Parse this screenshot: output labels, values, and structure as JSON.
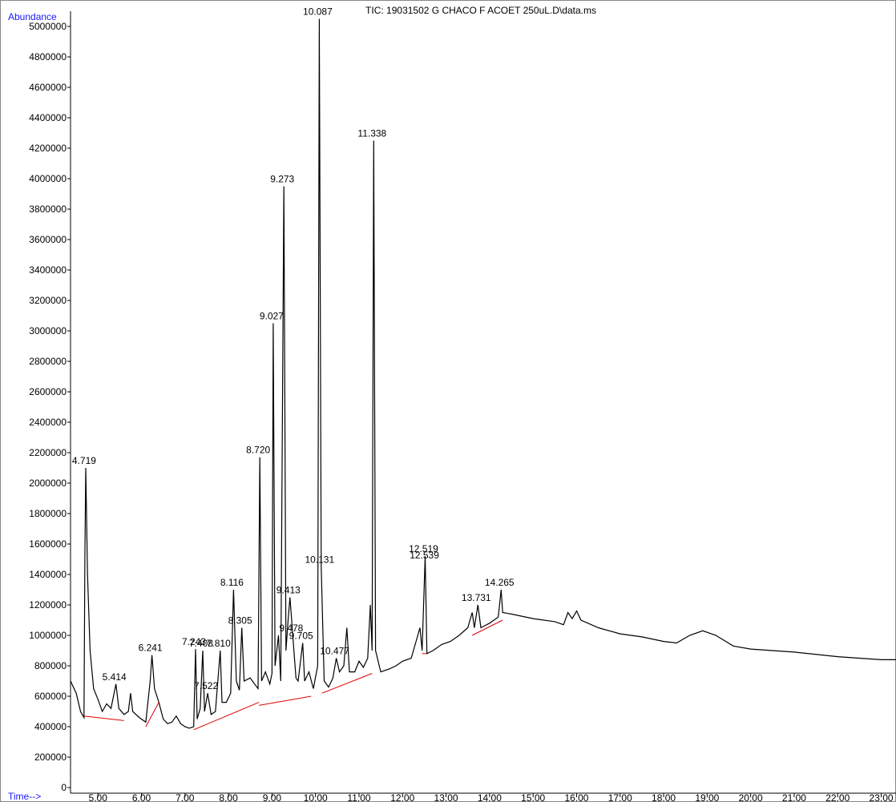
{
  "chart_data": {
    "type": "line",
    "title": "TIC: 19031502 G CHACO F ACOET 250uL.D\\data.ms",
    "y_label": "Abundance",
    "x_label": "Time-->",
    "xlim": [
      4.37,
      23.34
    ],
    "ylim": [
      0,
      5100000
    ],
    "xticks": [
      {
        "value": 5,
        "label": "5.00"
      },
      {
        "value": 6,
        "label": "6.00"
      },
      {
        "value": 7,
        "label": "7.00"
      },
      {
        "value": 8,
        "label": "8.00"
      },
      {
        "value": 9,
        "label": "9.00"
      },
      {
        "value": 10,
        "label": "10.00"
      },
      {
        "value": 11,
        "label": "11.00"
      },
      {
        "value": 12,
        "label": "12.00"
      },
      {
        "value": 13,
        "label": "13.00"
      },
      {
        "value": 14,
        "label": "14.00"
      },
      {
        "value": 15,
        "label": "15.00"
      },
      {
        "value": 16,
        "label": "16.00"
      },
      {
        "value": 17,
        "label": "17.00"
      },
      {
        "value": 18,
        "label": "18.00"
      },
      {
        "value": 19,
        "label": "19.00"
      },
      {
        "value": 20,
        "label": "20.00"
      },
      {
        "value": 21,
        "label": "21.00"
      },
      {
        "value": 22,
        "label": "22.00"
      },
      {
        "value": 23,
        "label": "23.00"
      }
    ],
    "yticks": [
      0,
      200000,
      400000,
      600000,
      800000,
      1000000,
      1200000,
      1400000,
      1600000,
      1800000,
      2000000,
      2200000,
      2400000,
      2600000,
      2800000,
      3000000,
      3200000,
      3400000,
      3600000,
      3800000,
      4000000,
      4200000,
      4400000,
      4600000,
      4800000,
      5000000
    ],
    "series": [
      {
        "color": "#000000",
        "x": [
          4.37,
          4.5,
          4.6,
          4.68,
          4.7,
          4.72,
          4.76,
          4.82,
          4.9,
          5.0,
          5.1,
          5.2,
          5.3,
          5.414,
          5.48,
          5.6,
          5.7,
          5.75,
          5.8,
          5.95,
          6.1,
          6.2,
          6.241,
          6.3,
          6.4,
          6.5,
          6.6,
          6.7,
          6.8,
          6.9,
          7.0,
          7.1,
          7.2,
          7.243,
          7.28,
          7.35,
          7.408,
          7.45,
          7.522,
          7.6,
          7.7,
          7.81,
          7.85,
          7.95,
          8.05,
          8.116,
          8.18,
          8.25,
          8.305,
          8.36,
          8.5,
          8.6,
          8.68,
          8.72,
          8.76,
          8.85,
          8.95,
          9.0,
          9.027,
          9.07,
          9.15,
          9.2,
          9.273,
          9.32,
          9.37,
          9.413,
          9.478,
          9.55,
          9.6,
          9.705,
          9.75,
          9.85,
          9.95,
          10.05,
          10.087,
          10.131,
          10.2,
          10.3,
          10.4,
          10.477,
          10.55,
          10.65,
          10.72,
          10.78,
          10.9,
          11.0,
          11.1,
          11.2,
          11.26,
          11.3,
          11.338,
          11.38,
          11.5,
          11.7,
          11.85,
          12.0,
          12.2,
          12.3,
          12.4,
          12.45,
          12.519,
          12.56,
          12.7,
          12.9,
          13.1,
          13.3,
          13.5,
          13.6,
          13.65,
          13.731,
          13.8,
          14.0,
          14.2,
          14.265,
          14.3,
          14.5,
          15.0,
          15.5,
          15.7,
          15.8,
          15.9,
          16.0,
          16.1,
          16.5,
          17.0,
          17.5,
          18.0,
          18.3,
          18.6,
          18.9,
          19.2,
          19.6,
          20.0,
          21.0,
          22.0,
          23.0,
          23.34
        ],
        "values": [
          700000,
          620000,
          500000,
          460000,
          1500000,
          2100000,
          1400000,
          900000,
          650000,
          580000,
          500000,
          550000,
          520000,
          680000,
          520000,
          480000,
          500000,
          620000,
          500000,
          460000,
          430000,
          700000,
          870000,
          650000,
          560000,
          450000,
          420000,
          430000,
          470000,
          420000,
          400000,
          390000,
          400000,
          910000,
          450000,
          520000,
          900000,
          500000,
          620000,
          480000,
          500000,
          900000,
          560000,
          560000,
          620000,
          1300000,
          700000,
          640000,
          1050000,
          700000,
          720000,
          680000,
          650000,
          2170000,
          700000,
          760000,
          680000,
          750000,
          3050000,
          800000,
          1000000,
          700000,
          3950000,
          900000,
          1100000,
          1250000,
          1000000,
          720000,
          700000,
          950000,
          700000,
          760000,
          650000,
          800000,
          5050000,
          1450000,
          700000,
          660000,
          720000,
          850000,
          760000,
          800000,
          1050000,
          760000,
          760000,
          830000,
          790000,
          850000,
          1200000,
          900000,
          4250000,
          900000,
          760000,
          780000,
          800000,
          830000,
          850000,
          950000,
          1050000,
          900000,
          1520000,
          880000,
          900000,
          940000,
          960000,
          1000000,
          1050000,
          1150000,
          1050000,
          1200000,
          1050000,
          1080000,
          1120000,
          1300000,
          1150000,
          1140000,
          1110000,
          1090000,
          1070000,
          1150000,
          1110000,
          1160000,
          1100000,
          1050000,
          1010000,
          990000,
          960000,
          950000,
          1000000,
          1030000,
          1000000,
          930000,
          910000,
          890000,
          860000,
          840000,
          840000
        ]
      }
    ],
    "baseline_color": "#e00000",
    "baselines": [
      {
        "x": [
          4.68,
          5.6
        ],
        "y": [
          470000,
          440000
        ]
      },
      {
        "x": [
          6.1,
          6.4
        ],
        "y": [
          400000,
          560000
        ]
      },
      {
        "x": [
          7.2,
          8.7
        ],
        "y": [
          380000,
          560000
        ]
      },
      {
        "x": [
          8.7,
          9.9
        ],
        "y": [
          540000,
          600000
        ]
      },
      {
        "x": [
          10.15,
          11.3
        ],
        "y": [
          620000,
          750000
        ]
      },
      {
        "x": [
          12.45,
          12.55
        ],
        "y": [
          880000,
          880000
        ]
      },
      {
        "x": [
          13.6,
          14.3
        ],
        "y": [
          1000000,
          1100000
        ]
      }
    ],
    "peaks": [
      {
        "time": 4.719,
        "abundance": 2100000
      },
      {
        "time": 5.414,
        "abundance": 680000
      },
      {
        "time": 6.241,
        "abundance": 870000
      },
      {
        "time": 7.243,
        "abundance": 910000
      },
      {
        "time": 7.408,
        "abundance": 900000
      },
      {
        "time": 7.522,
        "abundance": 620000
      },
      {
        "time": 7.81,
        "label": "7.810",
        "abundance": 900000
      },
      {
        "time": 8.116,
        "abundance": 1300000
      },
      {
        "time": 8.305,
        "abundance": 1050000
      },
      {
        "time": 8.72,
        "label": "8.720",
        "abundance": 2170000
      },
      {
        "time": 9.027,
        "abundance": 3050000
      },
      {
        "time": 9.273,
        "abundance": 3950000
      },
      {
        "time": 9.413,
        "abundance": 1250000
      },
      {
        "time": 9.478,
        "abundance": 1000000
      },
      {
        "time": 9.705,
        "abundance": 950000
      },
      {
        "time": 10.087,
        "abundance": 5050000
      },
      {
        "time": 10.131,
        "abundance": 1450000
      },
      {
        "time": 10.477,
        "abundance": 850000
      },
      {
        "time": 11.338,
        "abundance": 4250000
      },
      {
        "time": 12.519,
        "abundance": 1520000
      },
      {
        "time": 12.539,
        "abundance": 1480000
      },
      {
        "time": 13.731,
        "abundance": 1200000
      },
      {
        "time": 14.265,
        "abundance": 1300000
      }
    ]
  }
}
